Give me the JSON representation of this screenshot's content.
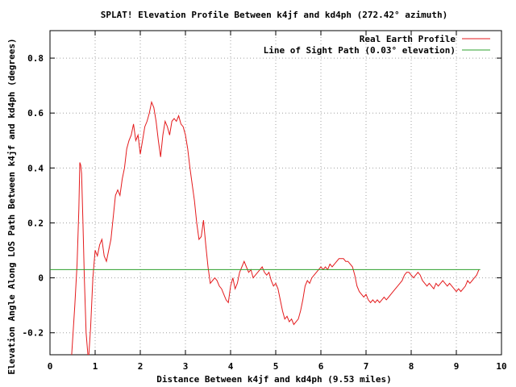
{
  "chart_data": {
    "type": "line",
    "title": "SPLAT! Elevation Profile Between k4jf and kd4ph (272.42° azimuth)",
    "xlabel": "Distance Between k4jf and kd4ph (9.53 miles)",
    "ylabel": "Elevation Angle Along LOS Path Between k4jf and kd4ph (degrees)",
    "xlim": [
      0,
      10
    ],
    "ylim": [
      -0.28,
      0.9
    ],
    "x_ticks": [
      "0",
      "1",
      "2",
      "3",
      "4",
      "5",
      "6",
      "7",
      "8",
      "9",
      "10"
    ],
    "y_ticks": [
      "-0.2",
      "0",
      "0.2",
      "0.4",
      "0.6",
      "0.8"
    ],
    "grid": true,
    "legend_position": "top-right",
    "colors": {
      "profile": "#e41a1c",
      "los": "#2ca02c"
    },
    "series": [
      {
        "name": "Real Earth Profile",
        "points": [
          [
            0.48,
            -0.28
          ],
          [
            0.55,
            -0.1
          ],
          [
            0.6,
            0.05
          ],
          [
            0.64,
            0.25
          ],
          [
            0.66,
            0.42
          ],
          [
            0.68,
            0.41
          ],
          [
            0.7,
            0.38
          ],
          [
            0.73,
            0.2
          ],
          [
            0.76,
            0.0
          ],
          [
            0.8,
            -0.2
          ],
          [
            0.84,
            -0.28
          ],
          [
            0.86,
            -0.28
          ],
          [
            0.9,
            -0.18
          ],
          [
            0.95,
            0.0
          ],
          [
            1.0,
            0.1
          ],
          [
            1.05,
            0.08
          ],
          [
            1.1,
            0.12
          ],
          [
            1.15,
            0.14
          ],
          [
            1.2,
            0.08
          ],
          [
            1.25,
            0.06
          ],
          [
            1.3,
            0.1
          ],
          [
            1.35,
            0.14
          ],
          [
            1.4,
            0.22
          ],
          [
            1.45,
            0.3
          ],
          [
            1.5,
            0.32
          ],
          [
            1.55,
            0.3
          ],
          [
            1.6,
            0.36
          ],
          [
            1.65,
            0.4
          ],
          [
            1.7,
            0.47
          ],
          [
            1.75,
            0.5
          ],
          [
            1.8,
            0.52
          ],
          [
            1.85,
            0.56
          ],
          [
            1.9,
            0.5
          ],
          [
            1.95,
            0.52
          ],
          [
            2.0,
            0.45
          ],
          [
            2.05,
            0.5
          ],
          [
            2.1,
            0.55
          ],
          [
            2.15,
            0.57
          ],
          [
            2.2,
            0.6
          ],
          [
            2.25,
            0.64
          ],
          [
            2.3,
            0.62
          ],
          [
            2.35,
            0.57
          ],
          [
            2.4,
            0.5
          ],
          [
            2.45,
            0.44
          ],
          [
            2.5,
            0.52
          ],
          [
            2.55,
            0.57
          ],
          [
            2.6,
            0.55
          ],
          [
            2.65,
            0.52
          ],
          [
            2.7,
            0.57
          ],
          [
            2.75,
            0.58
          ],
          [
            2.8,
            0.57
          ],
          [
            2.85,
            0.59
          ],
          [
            2.9,
            0.56
          ],
          [
            2.95,
            0.55
          ],
          [
            3.0,
            0.52
          ],
          [
            3.05,
            0.47
          ],
          [
            3.1,
            0.4
          ],
          [
            3.15,
            0.34
          ],
          [
            3.2,
            0.28
          ],
          [
            3.25,
            0.2
          ],
          [
            3.3,
            0.14
          ],
          [
            3.35,
            0.15
          ],
          [
            3.4,
            0.21
          ],
          [
            3.45,
            0.12
          ],
          [
            3.5,
            0.04
          ],
          [
            3.55,
            -0.02
          ],
          [
            3.6,
            -0.01
          ],
          [
            3.65,
            0.0
          ],
          [
            3.7,
            -0.01
          ],
          [
            3.75,
            -0.03
          ],
          [
            3.8,
            -0.04
          ],
          [
            3.85,
            -0.06
          ],
          [
            3.9,
            -0.08
          ],
          [
            3.95,
            -0.09
          ],
          [
            4.0,
            -0.03
          ],
          [
            4.05,
            0.0
          ],
          [
            4.1,
            -0.04
          ],
          [
            4.15,
            -0.02
          ],
          [
            4.2,
            0.02
          ],
          [
            4.25,
            0.04
          ],
          [
            4.3,
            0.06
          ],
          [
            4.35,
            0.04
          ],
          [
            4.4,
            0.02
          ],
          [
            4.45,
            0.03
          ],
          [
            4.5,
            0.0
          ],
          [
            4.55,
            0.01
          ],
          [
            4.6,
            0.02
          ],
          [
            4.65,
            0.03
          ],
          [
            4.7,
            0.04
          ],
          [
            4.75,
            0.02
          ],
          [
            4.8,
            0.01
          ],
          [
            4.85,
            0.02
          ],
          [
            4.9,
            -0.01
          ],
          [
            4.95,
            -0.03
          ],
          [
            5.0,
            -0.02
          ],
          [
            5.05,
            -0.04
          ],
          [
            5.1,
            -0.08
          ],
          [
            5.15,
            -0.12
          ],
          [
            5.2,
            -0.15
          ],
          [
            5.25,
            -0.14
          ],
          [
            5.3,
            -0.16
          ],
          [
            5.35,
            -0.15
          ],
          [
            5.4,
            -0.17
          ],
          [
            5.45,
            -0.16
          ],
          [
            5.5,
            -0.15
          ],
          [
            5.55,
            -0.12
          ],
          [
            5.6,
            -0.08
          ],
          [
            5.65,
            -0.03
          ],
          [
            5.7,
            -0.01
          ],
          [
            5.75,
            -0.02
          ],
          [
            5.8,
            0.0
          ],
          [
            5.85,
            0.01
          ],
          [
            5.9,
            0.02
          ],
          [
            5.95,
            0.03
          ],
          [
            6.0,
            0.04
          ],
          [
            6.05,
            0.03
          ],
          [
            6.1,
            0.04
          ],
          [
            6.15,
            0.03
          ],
          [
            6.2,
            0.05
          ],
          [
            6.25,
            0.04
          ],
          [
            6.3,
            0.05
          ],
          [
            6.35,
            0.06
          ],
          [
            6.4,
            0.07
          ],
          [
            6.45,
            0.07
          ],
          [
            6.5,
            0.07
          ],
          [
            6.55,
            0.06
          ],
          [
            6.6,
            0.06
          ],
          [
            6.65,
            0.05
          ],
          [
            6.7,
            0.04
          ],
          [
            6.75,
            0.01
          ],
          [
            6.8,
            -0.03
          ],
          [
            6.85,
            -0.05
          ],
          [
            6.9,
            -0.06
          ],
          [
            6.95,
            -0.07
          ],
          [
            7.0,
            -0.06
          ],
          [
            7.05,
            -0.08
          ],
          [
            7.1,
            -0.09
          ],
          [
            7.15,
            -0.08
          ],
          [
            7.2,
            -0.09
          ],
          [
            7.25,
            -0.08
          ],
          [
            7.3,
            -0.09
          ],
          [
            7.35,
            -0.08
          ],
          [
            7.4,
            -0.07
          ],
          [
            7.45,
            -0.08
          ],
          [
            7.5,
            -0.07
          ],
          [
            7.55,
            -0.06
          ],
          [
            7.6,
            -0.05
          ],
          [
            7.65,
            -0.04
          ],
          [
            7.7,
            -0.03
          ],
          [
            7.75,
            -0.02
          ],
          [
            7.8,
            -0.01
          ],
          [
            7.85,
            0.01
          ],
          [
            7.9,
            0.02
          ],
          [
            7.95,
            0.02
          ],
          [
            8.0,
            0.01
          ],
          [
            8.05,
            0.0
          ],
          [
            8.1,
            0.01
          ],
          [
            8.15,
            0.02
          ],
          [
            8.2,
            0.01
          ],
          [
            8.25,
            -0.01
          ],
          [
            8.3,
            -0.02
          ],
          [
            8.35,
            -0.03
          ],
          [
            8.4,
            -0.02
          ],
          [
            8.45,
            -0.03
          ],
          [
            8.5,
            -0.04
          ],
          [
            8.55,
            -0.02
          ],
          [
            8.6,
            -0.03
          ],
          [
            8.65,
            -0.02
          ],
          [
            8.7,
            -0.01
          ],
          [
            8.75,
            -0.02
          ],
          [
            8.8,
            -0.03
          ],
          [
            8.85,
            -0.02
          ],
          [
            8.9,
            -0.03
          ],
          [
            8.95,
            -0.04
          ],
          [
            9.0,
            -0.05
          ],
          [
            9.05,
            -0.04
          ],
          [
            9.1,
            -0.05
          ],
          [
            9.15,
            -0.04
          ],
          [
            9.2,
            -0.03
          ],
          [
            9.25,
            -0.01
          ],
          [
            9.3,
            -0.02
          ],
          [
            9.35,
            -0.01
          ],
          [
            9.4,
            0.0
          ],
          [
            9.45,
            0.01
          ],
          [
            9.5,
            0.03
          ]
        ]
      },
      {
        "name": "Line of Sight Path (0.03° elevation)",
        "points": [
          [
            0.0,
            0.03
          ],
          [
            9.53,
            0.03
          ]
        ]
      }
    ]
  }
}
